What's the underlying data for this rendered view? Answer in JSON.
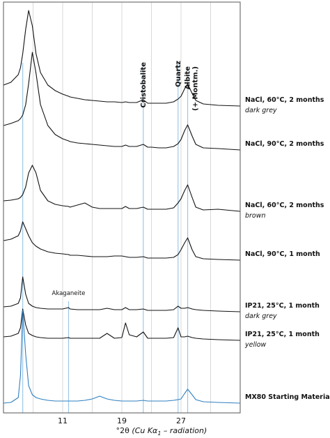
{
  "chart_data": {
    "type": "line",
    "x_label": {
      "main": "°2θ ",
      "italic": "(Cu Kα",
      "sub": "1",
      "end": " – radiation)"
    },
    "xlim": [
      3,
      35
    ],
    "xticks": [
      11,
      19,
      27
    ],
    "xgrid": [
      7,
      11,
      15,
      19,
      23,
      27,
      31
    ],
    "grid": true,
    "reference_color": "#9cc8ea",
    "reference_lines": [
      {
        "x": 5.6
      },
      {
        "x": 11.8,
        "label": "Akaganeite"
      },
      {
        "x": 21.9,
        "label": "Cristobalite"
      },
      {
        "x": 26.6,
        "label": "Quartz"
      },
      {
        "x": 27.9,
        "label": "Albite",
        "label2": "(+ Montm.)"
      }
    ],
    "x": [
      3,
      4,
      5,
      5.3,
      5.6,
      6,
      6.4,
      6.9,
      7.4,
      8,
      9,
      10,
      11,
      11.8,
      12,
      13,
      14,
      15,
      16,
      17,
      18,
      19,
      19.5,
      20,
      21,
      21.9,
      22.5,
      23,
      24,
      25,
      26,
      26.6,
      27,
      27.5,
      27.9,
      28.5,
      29,
      30,
      32,
      35
    ],
    "series": [
      {
        "name": "NaCl, 60°C, 2 months",
        "sublabel": "dark grey",
        "color": "#111111",
        "values": [
          30,
          34,
          45,
          55,
          75,
          110,
          137,
          115,
          75,
          48,
          30,
          22,
          17,
          14,
          13,
          11,
          9,
          8,
          7,
          6,
          6,
          5,
          6,
          5,
          5,
          9,
          4,
          4,
          4,
          4,
          6,
          10,
          14,
          25,
          32,
          18,
          8,
          3,
          1,
          0
        ]
      },
      {
        "name": "NaCl, 90°C, 2 months",
        "color": "#111111",
        "values": [
          35,
          38,
          42,
          45,
          50,
          65,
          95,
          140,
          110,
          65,
          35,
          22,
          16,
          13,
          12,
          10,
          9,
          8,
          7,
          6,
          5,
          5,
          7,
          5,
          5,
          8,
          4,
          4,
          3,
          3,
          5,
          9,
          15,
          28,
          36,
          20,
          8,
          3,
          2,
          0
        ]
      },
      {
        "name": "NaCl, 60°C, 2 months",
        "sublabel": "brown",
        "color": "#111111",
        "values": [
          15,
          16,
          18,
          20,
          24,
          35,
          55,
          66,
          55,
          30,
          15,
          10,
          8,
          7,
          6,
          9,
          12,
          6,
          4,
          4,
          4,
          4,
          7,
          4,
          4,
          6,
          3,
          3,
          3,
          3,
          5,
          12,
          18,
          30,
          38,
          20,
          6,
          2,
          3,
          0
        ]
      },
      {
        "name": "NaCl, 90°C, 1 month",
        "color": "#111111",
        "values": [
          28,
          30,
          35,
          42,
          55,
          45,
          35,
          25,
          20,
          16,
          12,
          10,
          9,
          8,
          7,
          7,
          6,
          5,
          5,
          5,
          6,
          6,
          5,
          4,
          4,
          5,
          3,
          3,
          3,
          3,
          4,
          8,
          15,
          25,
          32,
          15,
          5,
          2,
          1,
          0
        ]
      },
      {
        "name": "IP21, 25°C, 1 month",
        "sublabel": "dark grey",
        "color": "#111111",
        "values": [
          7,
          8,
          12,
          20,
          50,
          25,
          12,
          8,
          6,
          5,
          4,
          4,
          4,
          6,
          4,
          3,
          3,
          3,
          3,
          5,
          3,
          3,
          6,
          3,
          3,
          4,
          2,
          2,
          2,
          2,
          3,
          8,
          5,
          5,
          6,
          4,
          3,
          2,
          1,
          0
        ]
      },
      {
        "name": "IP21, 25°C, 1 month",
        "sublabel": "yellow",
        "color": "#111111",
        "values": [
          5,
          6,
          10,
          18,
          45,
          22,
          10,
          7,
          5,
          4,
          3,
          3,
          3,
          4,
          3,
          3,
          3,
          3,
          3,
          10,
          3,
          4,
          25,
          8,
          5,
          12,
          3,
          3,
          3,
          3,
          4,
          18,
          5,
          5,
          6,
          4,
          3,
          2,
          1,
          0
        ]
      },
      {
        "name": "MX80 Starting Material",
        "color": "#2f7fc0",
        "values": [
          0,
          1,
          8,
          40,
          133,
          70,
          25,
          12,
          8,
          6,
          4,
          3,
          3,
          3,
          3,
          3,
          4,
          6,
          10,
          6,
          4,
          3,
          3,
          3,
          3,
          4,
          3,
          3,
          3,
          3,
          4,
          5,
          6,
          14,
          20,
          12,
          5,
          2,
          1,
          0
        ]
      }
    ]
  }
}
